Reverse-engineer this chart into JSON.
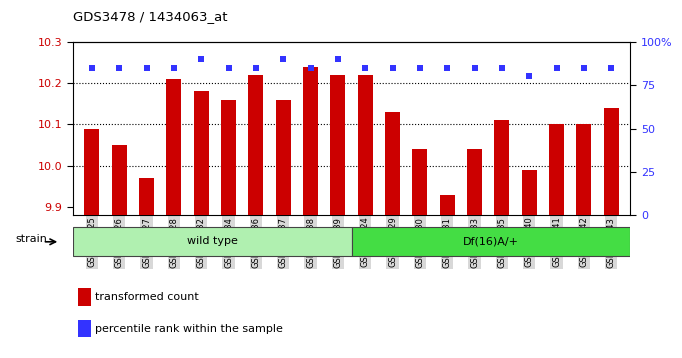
{
  "title": "GDS3478 / 1434063_at",
  "samples": [
    "GSM272325",
    "GSM272326",
    "GSM272327",
    "GSM272328",
    "GSM272332",
    "GSM272334",
    "GSM272336",
    "GSM272337",
    "GSM272338",
    "GSM272339",
    "GSM272324",
    "GSM272329",
    "GSM272330",
    "GSM272331",
    "GSM272333",
    "GSM272335",
    "GSM272340",
    "GSM272341",
    "GSM272342",
    "GSM272343"
  ],
  "transformed_count": [
    10.09,
    10.05,
    9.97,
    10.21,
    10.18,
    10.16,
    10.22,
    10.16,
    10.24,
    10.22,
    10.22,
    10.13,
    10.04,
    9.93,
    10.04,
    10.11,
    9.99,
    10.1,
    10.1,
    10.14
  ],
  "percentile_vals": [
    85,
    85,
    85,
    85,
    90,
    85,
    85,
    90,
    85,
    90,
    85,
    85,
    85,
    85,
    85,
    85,
    80,
    85,
    85,
    85
  ],
  "group1_label": "wild type",
  "group2_label": "Df(16)A/+",
  "group1_count": 10,
  "ylim_left": [
    9.88,
    10.3
  ],
  "ylim_right": [
    0,
    100
  ],
  "yticks_left": [
    9.9,
    10.0,
    10.1,
    10.2,
    10.3
  ],
  "yticks_right": [
    0,
    25,
    50,
    75,
    100
  ],
  "bar_color": "#cc0000",
  "dot_color": "#3333ff",
  "group1_bg": "#b0f0b0",
  "group2_bg": "#44dd44",
  "tick_bg": "#d8d8d8",
  "legend_bar_label": "transformed count",
  "legend_dot_label": "percentile rank within the sample",
  "strain_label": "strain",
  "bar_bottom": 9.88,
  "grid_lines": [
    10.0,
    10.1,
    10.2
  ]
}
